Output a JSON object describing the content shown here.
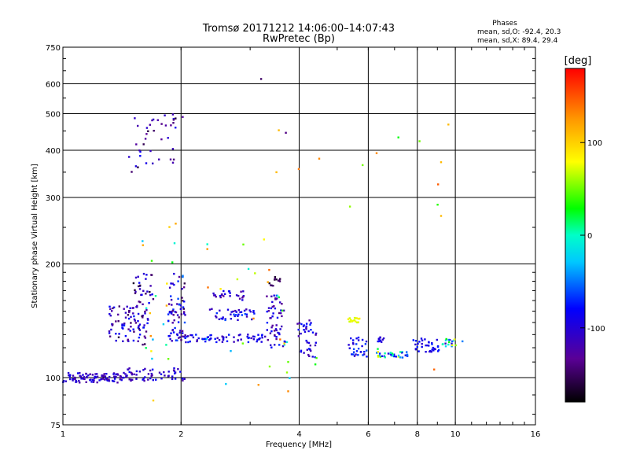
{
  "chart_data": {
    "type": "scatter",
    "title": "Tromsø 20171212 14:06:00–14:07:43",
    "subtitle": "RwPretec (Bp)",
    "xlabel": "Frequency [MHz]",
    "ylabel": "Stationary phase Virtual Height [km]",
    "x_scale": "log",
    "y_scale": "log",
    "xlim": [
      1,
      16
    ],
    "ylim": [
      75,
      750
    ],
    "x_ticks": [
      "1",
      "2",
      "4",
      "6",
      "8",
      "10",
      "16"
    ],
    "y_ticks": [
      "75",
      "100",
      "200",
      "300",
      "400",
      "500",
      "600",
      "750"
    ],
    "grid": true,
    "legend": {
      "title": "Phases",
      "lines": [
        "mean, sd,O: -92.4, 20.3",
        "mean, sd,X:  89.4, 29.4"
      ]
    },
    "colorbar": {
      "label": "[deg]",
      "range": [
        -180,
        180
      ],
      "ticks": [
        "100",
        "0",
        "-100"
      ],
      "tick_values": [
        100,
        0,
        -100
      ]
    },
    "clusters": [
      {
        "x": [
          1.0,
          1.45
        ],
        "y": [
          97,
          103
        ],
        "n": 95,
        "phase": [
          -130,
          -85
        ]
      },
      {
        "x": [
          1.45,
          2.05
        ],
        "y": [
          98,
          106
        ],
        "n": 55,
        "phase": [
          -130,
          -80
        ]
      },
      {
        "x": [
          1.3,
          1.65
        ],
        "y": [
          122,
          155
        ],
        "n": 90,
        "phase": [
          -160,
          -70
        ]
      },
      {
        "x": [
          1.5,
          1.7
        ],
        "y": [
          155,
          190
        ],
        "n": 30,
        "phase": [
          -170,
          -80
        ]
      },
      {
        "x": [
          1.85,
          2.05
        ],
        "y": [
          125,
          150
        ],
        "n": 45,
        "phase": [
          -150,
          -60
        ]
      },
      {
        "x": [
          1.85,
          2.05
        ],
        "y": [
          150,
          190
        ],
        "n": 30,
        "phase": [
          -160,
          -50
        ]
      },
      {
        "x": [
          2.05,
          2.9
        ],
        "y": [
          124,
          130
        ],
        "n": 45,
        "phase": [
          -120,
          -70
        ]
      },
      {
        "x": [
          2.3,
          3.1
        ],
        "y": [
          142,
          152
        ],
        "n": 40,
        "phase": [
          -120,
          -60
        ]
      },
      {
        "x": [
          2.4,
          2.9
        ],
        "y": [
          160,
          170
        ],
        "n": 25,
        "phase": [
          -140,
          -80
        ]
      },
      {
        "x": [
          2.95,
          3.3
        ],
        "y": [
          124,
          130
        ],
        "n": 20,
        "phase": [
          -120,
          -70
        ]
      },
      {
        "x": [
          3.3,
          3.7
        ],
        "y": [
          120,
          165
        ],
        "n": 55,
        "phase": [
          -140,
          -70
        ]
      },
      {
        "x": [
          3.35,
          3.6
        ],
        "y": [
          175,
          185
        ],
        "n": 12,
        "phase": [
          -170,
          -140
        ]
      },
      {
        "x": [
          3.95,
          4.45
        ],
        "y": [
          113,
          142
        ],
        "n": 40,
        "phase": [
          -130,
          -70
        ]
      },
      {
        "x": [
          5.3,
          5.75
        ],
        "y": [
          140,
          144
        ],
        "n": 18,
        "phase": [
          70,
          90
        ]
      },
      {
        "x": [
          5.35,
          5.95
        ],
        "y": [
          113,
          128
        ],
        "n": 30,
        "phase": [
          -110,
          -60
        ]
      },
      {
        "x": [
          6.3,
          6.6
        ],
        "y": [
          123,
          128
        ],
        "n": 12,
        "phase": [
          -110,
          -80
        ]
      },
      {
        "x": [
          6.3,
          7.6
        ],
        "y": [
          113,
          117
        ],
        "n": 35,
        "phase": [
          -100,
          90
        ]
      },
      {
        "x": [
          7.8,
          9.1
        ],
        "y": [
          117,
          127
        ],
        "n": 35,
        "phase": [
          -110,
          -70
        ]
      },
      {
        "x": [
          9.2,
          10.6
        ],
        "y": [
          121,
          127
        ],
        "n": 18,
        "phase": [
          -110,
          90
        ]
      },
      {
        "x": [
          1.45,
          1.95
        ],
        "y": [
          350,
          500
        ],
        "n": 40,
        "phase": [
          -170,
          -80
        ]
      },
      {
        "x": [
          1.55,
          1.95
        ],
        "y": [
          90,
          260
        ],
        "n": 20,
        "phase": [
          -40,
          130
        ]
      },
      {
        "x": [
          2.3,
          3.8
        ],
        "y": [
          95,
          240
        ],
        "n": 25,
        "phase": [
          -40,
          160
        ]
      },
      {
        "x": [
          3.5,
          9.6
        ],
        "y": [
          92,
          470
        ],
        "n": 14,
        "phase": [
          20,
          150
        ]
      }
    ],
    "points": [
      {
        "x": 3.2,
        "y": 618,
        "phase": -150
      },
      {
        "x": 2.02,
        "y": 490,
        "phase": -130
      },
      {
        "x": 3.7,
        "y": 445,
        "phase": -140
      },
      {
        "x": 9.6,
        "y": 468,
        "phase": 110
      },
      {
        "x": 6.3,
        "y": 393,
        "phase": 130
      },
      {
        "x": 9.2,
        "y": 372,
        "phase": 110
      },
      {
        "x": 4.5,
        "y": 380,
        "phase": 130
      },
      {
        "x": 9.2,
        "y": 268,
        "phase": 110
      },
      {
        "x": 3.5,
        "y": 350,
        "phase": 110
      },
      {
        "x": 3.55,
        "y": 452,
        "phase": 110
      },
      {
        "x": 3.75,
        "y": 92,
        "phase": 130
      },
      {
        "x": 1.7,
        "y": 87,
        "phase": 100
      }
    ]
  }
}
